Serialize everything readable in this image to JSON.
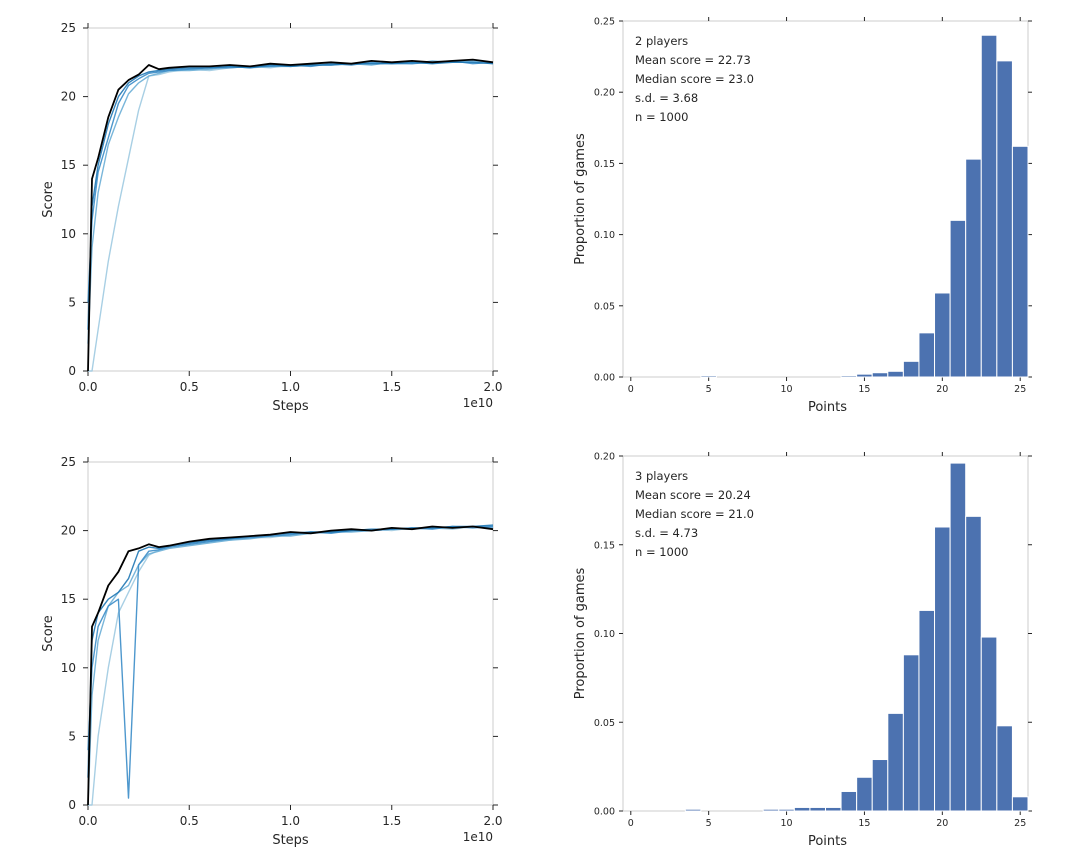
{
  "chart_data": [
    {
      "type": "line",
      "xlabel": "Steps",
      "ylabel": "Score",
      "x_multiplier_label": "1e10",
      "xlim": [
        0,
        2.0
      ],
      "ylim": [
        0,
        25
      ],
      "xticks": [
        "0.0",
        "0.5",
        "1.0",
        "1.5",
        "2.0"
      ],
      "yticks": [
        "0",
        "5",
        "10",
        "15",
        "20",
        "25"
      ],
      "grid": false,
      "x": [
        0.0,
        0.02,
        0.05,
        0.1,
        0.15,
        0.2,
        0.25,
        0.3,
        0.35,
        0.4,
        0.5,
        0.6,
        0.7,
        0.8,
        0.9,
        1.0,
        1.1,
        1.2,
        1.3,
        1.4,
        1.5,
        1.6,
        1.7,
        1.8,
        1.9,
        2.0
      ],
      "series": [
        {
          "color": "#000000",
          "values": [
            0,
            14,
            15.5,
            18.5,
            20.5,
            21.2,
            21.6,
            22.3,
            22.0,
            22.1,
            22.2,
            22.2,
            22.3,
            22.2,
            22.4,
            22.3,
            22.4,
            22.5,
            22.4,
            22.6,
            22.5,
            22.6,
            22.5,
            22.6,
            22.7,
            22.5
          ]
        },
        {
          "color": "#1f77b4",
          "values": [
            3,
            12,
            15,
            18,
            20,
            21,
            21.5,
            21.8,
            21.9,
            22.0,
            22.1,
            22.1,
            22.2,
            22.1,
            22.3,
            22.2,
            22.3,
            22.3,
            22.4,
            22.4,
            22.4,
            22.5,
            22.4,
            22.5,
            22.5,
            22.4
          ]
        },
        {
          "color": "#3a8cc8",
          "values": [
            5,
            11,
            14.5,
            17,
            19.5,
            20.8,
            21.3,
            21.7,
            21.8,
            21.9,
            22.0,
            22.1,
            22.1,
            22.2,
            22.2,
            22.3,
            22.2,
            22.4,
            22.3,
            22.5,
            22.4,
            22.4,
            22.5,
            22.6,
            22.4,
            22.5
          ]
        },
        {
          "color": "#6aaed6",
          "values": [
            2,
            9,
            13,
            16.5,
            18.5,
            20.2,
            21.0,
            21.5,
            21.7,
            21.9,
            21.9,
            22.0,
            22.2,
            22.1,
            22.2,
            22.2,
            22.3,
            22.3,
            22.4,
            22.3,
            22.5,
            22.4,
            22.6,
            22.5,
            22.6,
            22.4
          ]
        },
        {
          "color": "#9ecae1",
          "values": [
            0,
            0,
            3,
            8,
            12,
            15.5,
            19,
            21.5,
            21.6,
            21.8,
            22.0,
            21.9,
            22.1,
            22.2,
            22.1,
            22.3,
            22.3,
            22.4,
            22.4,
            22.4,
            22.5,
            22.5,
            22.4,
            22.6,
            22.5,
            22.5
          ]
        }
      ]
    },
    {
      "type": "bar",
      "xlabel": "Points",
      "ylabel": "Proportion of games",
      "xlim": [
        -0.5,
        25.5
      ],
      "ylim": [
        0,
        0.25
      ],
      "xticks": [
        "0",
        "5",
        "10",
        "15",
        "20",
        "25"
      ],
      "yticks": [
        "0.00",
        "0.05",
        "0.10",
        "0.15",
        "0.20",
        "0.25"
      ],
      "bar_color": "#4c72b0",
      "categories": [
        0,
        1,
        2,
        3,
        4,
        5,
        6,
        7,
        8,
        9,
        10,
        11,
        12,
        13,
        14,
        15,
        16,
        17,
        18,
        19,
        20,
        21,
        22,
        23,
        24,
        25
      ],
      "values": [
        0,
        0,
        0,
        0,
        0,
        0.001,
        0,
        0,
        0,
        0,
        0,
        0,
        0,
        0,
        0.001,
        0.002,
        0.003,
        0.004,
        0.011,
        0.031,
        0.059,
        0.11,
        0.153,
        0.24,
        0.222,
        0.162
      ],
      "annotations": [
        "2 players",
        "Mean score = 22.73",
        "Median score = 23.0",
        "s.d. = 3.68",
        "n = 1000"
      ]
    },
    {
      "type": "line",
      "xlabel": "Steps",
      "ylabel": "Score",
      "x_multiplier_label": "1e10",
      "xlim": [
        0,
        2.0
      ],
      "ylim": [
        0,
        25
      ],
      "xticks": [
        "0.0",
        "0.5",
        "1.0",
        "1.5",
        "2.0"
      ],
      "yticks": [
        "0",
        "5",
        "10",
        "15",
        "20",
        "25"
      ],
      "grid": false,
      "x": [
        0.0,
        0.02,
        0.05,
        0.1,
        0.15,
        0.2,
        0.25,
        0.3,
        0.35,
        0.4,
        0.5,
        0.6,
        0.7,
        0.8,
        0.9,
        1.0,
        1.1,
        1.2,
        1.3,
        1.4,
        1.5,
        1.6,
        1.7,
        1.8,
        1.9,
        2.0
      ],
      "series": [
        {
          "color": "#000000",
          "values": [
            0,
            13,
            14,
            16,
            17,
            18.5,
            18.7,
            19.0,
            18.8,
            18.9,
            19.2,
            19.4,
            19.5,
            19.6,
            19.7,
            19.9,
            19.8,
            20.0,
            20.1,
            20.0,
            20.2,
            20.1,
            20.3,
            20.2,
            20.3,
            20.1
          ]
        },
        {
          "color": "#1f77b4",
          "values": [
            2,
            12,
            14,
            15,
            15.5,
            16.5,
            18.5,
            18.8,
            18.7,
            18.9,
            19.1,
            19.3,
            19.4,
            19.6,
            19.7,
            19.8,
            19.9,
            19.9,
            20.0,
            20.1,
            20.1,
            20.2,
            20.2,
            20.3,
            20.3,
            20.4
          ]
        },
        {
          "color": "#3a8cc8",
          "values": [
            4,
            10,
            13,
            14.5,
            15,
            0.5,
            17.5,
            18.5,
            18.6,
            18.8,
            19.0,
            19.2,
            19.4,
            19.5,
            19.6,
            19.7,
            19.9,
            19.8,
            20.0,
            20.0,
            20.1,
            20.2,
            20.1,
            20.3,
            20.2,
            20.3
          ]
        },
        {
          "color": "#6aaed6",
          "values": [
            0,
            8,
            12,
            14.5,
            15.5,
            16,
            17.5,
            18.3,
            18.5,
            18.7,
            18.9,
            19.1,
            19.3,
            19.4,
            19.6,
            19.6,
            19.8,
            19.9,
            19.9,
            20.0,
            20.1,
            20.1,
            20.2,
            20.2,
            20.3,
            20.2
          ]
        },
        {
          "color": "#9ecae1",
          "values": [
            0,
            0,
            5,
            10,
            14,
            15.5,
            17,
            18.2,
            18.6,
            18.8,
            19.0,
            19.2,
            19.3,
            19.5,
            19.5,
            19.7,
            19.8,
            19.9,
            20.0,
            20.1,
            20.0,
            20.2,
            20.2,
            20.1,
            20.3,
            20.3
          ]
        }
      ]
    },
    {
      "type": "bar",
      "xlabel": "Points",
      "ylabel": "Proportion of games",
      "xlim": [
        -0.5,
        25.5
      ],
      "ylim": [
        0,
        0.2
      ],
      "xticks": [
        "0",
        "5",
        "10",
        "15",
        "20",
        "25"
      ],
      "yticks": [
        "0.00",
        "0.05",
        "0.10",
        "0.15",
        "0.20"
      ],
      "bar_color": "#4c72b0",
      "categories": [
        0,
        1,
        2,
        3,
        4,
        5,
        6,
        7,
        8,
        9,
        10,
        11,
        12,
        13,
        14,
        15,
        16,
        17,
        18,
        19,
        20,
        21,
        22,
        23,
        24,
        25
      ],
      "values": [
        0,
        0,
        0,
        0,
        0.001,
        0,
        0,
        0,
        0,
        0.001,
        0.001,
        0.002,
        0.002,
        0.002,
        0.011,
        0.019,
        0.029,
        0.055,
        0.088,
        0.113,
        0.16,
        0.196,
        0.166,
        0.098,
        0.048,
        0.008
      ],
      "annotations": [
        "3 players",
        "Mean score = 20.24",
        "Median score = 21.0",
        "s.d. = 4.73",
        "n = 1000"
      ]
    }
  ]
}
